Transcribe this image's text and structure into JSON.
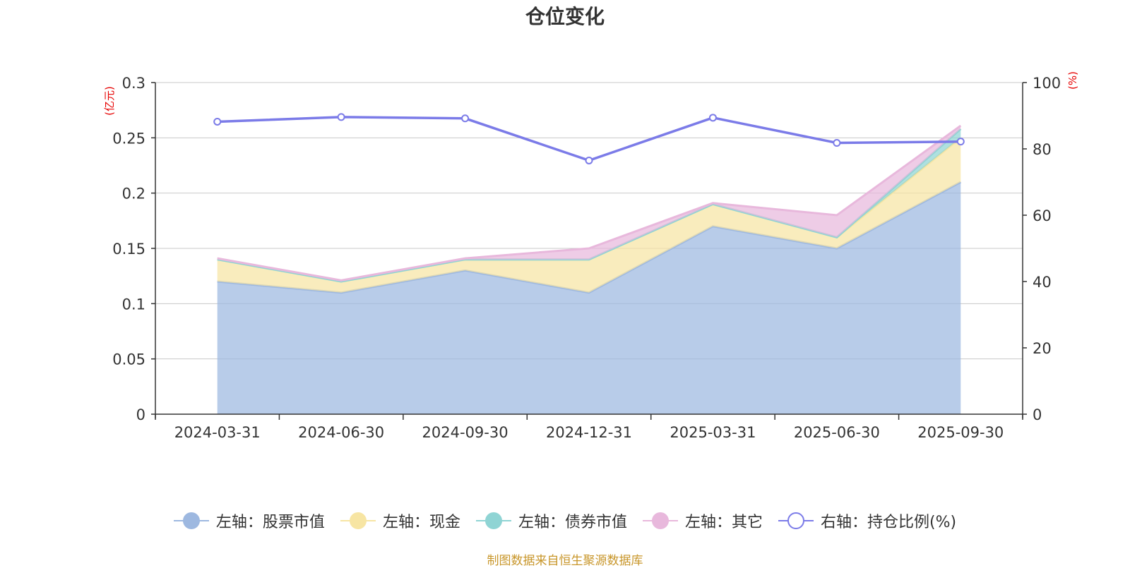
{
  "title": "仓位变化",
  "source_note": "制图数据来自恒生聚源数据库",
  "chart_data": {
    "type": "area",
    "title": "仓位变化",
    "categories": [
      "2024-03-31",
      "2024-06-30",
      "2024-09-30",
      "2024-12-31",
      "2025-03-31",
      "2025-06-30",
      "2025-09-30"
    ],
    "left_axis": {
      "label": "(亿元)",
      "ylim": [
        0,
        0.3
      ],
      "ticks": [
        0,
        0.05,
        0.1,
        0.15,
        0.2,
        0.25,
        0.3
      ],
      "tick_labels": [
        "0",
        "0.05",
        "0.1",
        "0.15",
        "0.2",
        "0.25",
        "0.3"
      ]
    },
    "right_axis": {
      "label": "(%)",
      "ylim": [
        0,
        100
      ],
      "ticks": [
        0,
        20,
        40,
        60,
        80,
        100
      ],
      "tick_labels": [
        "0",
        "20",
        "40",
        "60",
        "80",
        "100"
      ]
    },
    "stacked_series": [
      {
        "name": "左轴：股票市值",
        "color": "#9db8e0",
        "values": [
          0.12,
          0.11,
          0.13,
          0.11,
          0.17,
          0.15,
          0.21
        ]
      },
      {
        "name": "左轴：现金",
        "color": "#f7e5a3",
        "values": [
          0.02,
          0.01,
          0.01,
          0.03,
          0.02,
          0.01,
          0.04
        ]
      },
      {
        "name": "左轴：债券市值",
        "color": "#8fd4d4",
        "values": [
          0.0,
          0.0,
          0.0,
          0.0,
          0.0,
          0.0,
          0.008
        ]
      },
      {
        "name": "左轴：其它",
        "color": "#e8b8dc",
        "values": [
          0.001,
          0.001,
          0.001,
          0.01,
          0.001,
          0.02,
          0.003
        ]
      }
    ],
    "line_series": {
      "name": "右轴：持仓比例(%)",
      "color": "#7b7be8",
      "values": [
        88.2,
        89.6,
        89.2,
        76.5,
        89.4,
        81.8,
        82.2
      ]
    },
    "grid": true,
    "legend_position": "bottom"
  }
}
